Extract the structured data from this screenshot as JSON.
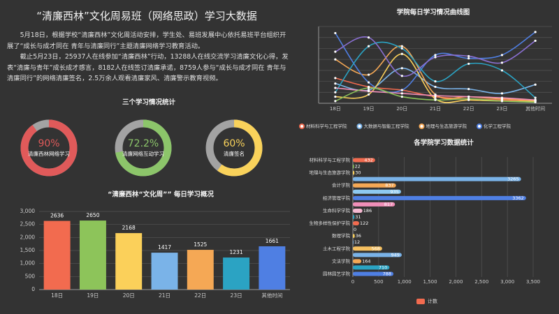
{
  "header": {
    "title": "“清廉西林”文化周易班（网络思政）学习大数据"
  },
  "intro": {
    "paragraphs": [
      "5月18日，根据学校“清廉西林”文化周活动安排，学生处、易班发展中心依托易班平台组织开展了“成长与成才同在 青年与清廉同行”主题清廉网络学习教育活动。",
      "截止5月23日，25937人在线参加“清廉西林”行动，13288人在线交流学习清廉文化心得，发表“清廉与青年”成长成才感言，8182人在线签订清廉承诺，8759人参与“成长与成才同在 青年与清廉同行”的网络清廉签名，2.5万余人观看清廉家风、清廉警示教育视频。"
    ]
  },
  "chart_data": [
    {
      "type": "donut",
      "title": "三个学习情况统计",
      "labels": [
        "清廉西林网络学习",
        "清廉网络互动学习",
        "清廉签名"
      ],
      "values": [
        90,
        72.2,
        60
      ],
      "value_labels": [
        "90%",
        "72.2%",
        "60%"
      ],
      "colors": [
        "#e05a5a",
        "#8cc56a",
        "#f9d25b"
      ],
      "track_color": "#a3a3a3"
    },
    {
      "type": "bar",
      "title": "“清廉西林“文化周”” 每日学习概况",
      "categories": [
        "18日",
        "19日",
        "20日",
        "21日",
        "22日",
        "23日",
        "其他时间"
      ],
      "values": [
        2636,
        2650,
        2168,
        1417,
        1525,
        1231,
        1661
      ],
      "colors": [
        "#f26b4f",
        "#8dc45a",
        "#fbd05a",
        "#7ab3e8",
        "#f5a855",
        "#2ba3c3",
        "#4f7fe3"
      ],
      "ylim": [
        0,
        3000
      ],
      "yticks": [
        0,
        500,
        {
          "value": 1000,
          "label": "1,000"
        },
        {
          "value": 1500,
          "label": "1,500"
        },
        {
          "value": 2000,
          "label": "2,000"
        },
        {
          "value": 2500,
          "label": "2,500"
        },
        {
          "value": 3000,
          "label": "3,000"
        }
      ],
      "grid": true
    },
    {
      "type": "line",
      "title": "学院每日学习情况曲线图",
      "categories": [
        "18日",
        "19日",
        "20日",
        "21日",
        "22日",
        "23日",
        "其他时间"
      ],
      "series": [
        {
          "name": "材料科学与工程学院",
          "color": "#f26b4f",
          "values": [
            230,
            150,
            120,
            60,
            40,
            30,
            20
          ]
        },
        {
          "name": "大数据与智能工程学院",
          "color": "#7ab3e8",
          "values": [
            180,
            120,
            320,
            150,
            130,
            90,
            170
          ]
        },
        {
          "name": "地理与生态旅游学院",
          "color": "#f5a855",
          "values": [
            400,
            260,
            520,
            80,
            60,
            40,
            30
          ]
        },
        {
          "name": "化学工程学院",
          "color": "#4f7fe3",
          "values": [
            640,
            190,
            120,
            440,
            410,
            440,
            650
          ]
        },
        {
          "color": "#fbd05a",
          "values": [
            60,
            80,
            450,
            40,
            30,
            20,
            20
          ]
        },
        {
          "color": "#2ba3c3",
          "values": [
            100,
            520,
            500,
            200,
            360,
            300,
            50
          ]
        },
        {
          "color": "#8a6fd1",
          "values": [
            470,
            600,
            250,
            420,
            430,
            370,
            570
          ]
        },
        {
          "color": "#f08fb8",
          "values": [
            140,
            110,
            90,
            70,
            60,
            50,
            30
          ]
        },
        {
          "color": "#8dc45a",
          "values": [
            20,
            140,
            60,
            30,
            40,
            20,
            10
          ]
        }
      ],
      "ylim": [
        0,
        700
      ],
      "yticks": [
        0,
        100,
        200,
        300,
        400,
        500,
        600,
        700
      ],
      "grid": true,
      "legend": "bottom"
    },
    {
      "type": "hbar",
      "title": "各学院学习数据统计",
      "categories": [
        "材料科学与工程学院",
        null,
        "地理与生态旅游学院",
        null,
        "会计学院",
        null,
        "经济管理学院",
        null,
        "生命科学学院",
        null,
        "生物多样性保护学院",
        null,
        "数理学院",
        null,
        "土木工程学院",
        null,
        "文法学院",
        null,
        "园林园艺学院"
      ],
      "series": [
        {
          "name": "计数",
          "color": "#f26b4f",
          "values": [
            432,
            22,
            30,
            3265,
            837,
            935,
            3362,
            817,
            186,
            31,
            122,
            0,
            36,
            12,
            568,
            949,
            164,
            710,
            788
          ]
        }
      ],
      "colors": [
        "#f26b4f",
        "#8dc45a",
        "#fbd05a",
        "#7ab3e8",
        "#f5a855",
        "#8ec9f0",
        "#4f7fe3",
        "#f08fb8",
        "#f5b8d0",
        "#2ba3c3",
        "#f26b4f",
        "#8dc45a",
        "#fbd05a",
        "#7ab3e8",
        "#f5c060",
        "#7ab3e8",
        "#f5a855",
        "#2ba3c3",
        "#4f7fe3"
      ],
      "xlim": [
        0,
        3500
      ],
      "xticks": [
        0,
        500,
        {
          "value": 1000,
          "label": "1,000"
        },
        {
          "value": 1500,
          "label": "1,500"
        },
        {
          "value": 2000,
          "label": "2,000"
        },
        {
          "value": 2500,
          "label": "2,500"
        },
        {
          "value": 3000,
          "label": "3,000"
        },
        {
          "value": 3500,
          "label": "3,500"
        }
      ],
      "grid": true,
      "legend": "bottom"
    }
  ]
}
